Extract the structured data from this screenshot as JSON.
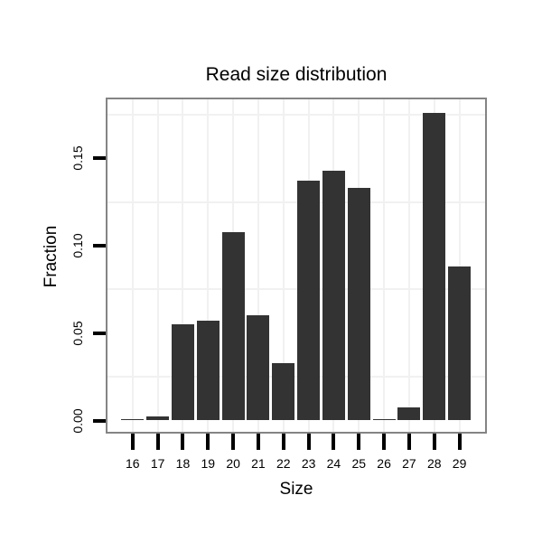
{
  "chart_data": {
    "type": "bar",
    "title": "Read size distribution",
    "xlabel": "Size",
    "ylabel": "Fraction",
    "categories": [
      "16",
      "17",
      "18",
      "19",
      "20",
      "21",
      "22",
      "23",
      "24",
      "25",
      "26",
      "27",
      "28",
      "29"
    ],
    "values": [
      0.001,
      0.0025,
      0.055,
      0.057,
      0.108,
      0.06,
      0.033,
      0.137,
      0.143,
      0.133,
      0.001,
      0.0075,
      0.176,
      0.088
    ],
    "yticks": {
      "labels": [
        "0.00",
        "0.05",
        "0.10",
        "0.15"
      ],
      "values": [
        0.0,
        0.05,
        0.1,
        0.15
      ]
    },
    "minor_gridlines": [
      0.025,
      0.075,
      0.125,
      0.175
    ],
    "ylim": [
      0,
      0.185
    ],
    "grid": "on",
    "legend": "none",
    "colors": {
      "bar": "#333333",
      "panel_border": "#848484",
      "gridline": "#f1f1f1",
      "tick": "#000000",
      "text": "#000000",
      "background": "#ffffff"
    }
  }
}
